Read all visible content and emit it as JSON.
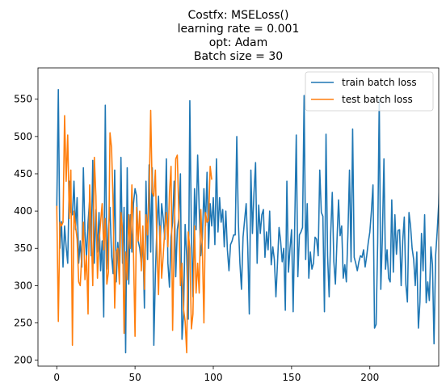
{
  "chart_data": {
    "type": "line",
    "title_lines": [
      "Costfx: MSELoss()",
      "learning rate = 0.001",
      "opt: Adam",
      "Batch size = 30"
    ],
    "xlabel": "",
    "ylabel": "",
    "xlim": [
      -12,
      244
    ],
    "ylim": [
      192,
      592
    ],
    "xticks": [
      0,
      50,
      100,
      150,
      200
    ],
    "yticks": [
      200,
      250,
      300,
      350,
      400,
      450,
      500,
      550
    ],
    "grid": false,
    "legend_position": "top-right",
    "series": [
      {
        "name": "train batch loss",
        "color": "#1f77b4",
        "values": [
          402,
          563,
          350,
          386,
          325,
          380,
          352,
          330,
          440,
          398,
          395,
          440,
          375,
          418,
          330,
          360,
          325,
          458,
          372,
          338,
          385,
          415,
          340,
          468,
          330,
          402,
          345,
          398,
          320,
          360,
          258,
          542,
          322,
          375,
          405,
          340,
          316,
          455,
          305,
          358,
          325,
          472,
          330,
          405,
          210,
          458,
          302,
          395,
          345,
          410,
          430,
          420,
          360,
          350,
          330,
          365,
          270,
          440,
          335,
          462,
          345,
          458,
          220,
          315,
          380,
          420,
          350,
          410,
          390,
          362,
          470,
          330,
          298,
          365,
          385,
          440,
          312,
          375,
          390,
          450,
          228,
          262,
          382,
          340,
          255,
          548,
          370,
          285,
          430,
          375,
          475,
          402,
          340,
          362,
          430,
          380,
          452,
          350,
          410,
          380,
          418,
          355,
          470,
          372,
          418,
          385,
          402,
          352,
          400,
          348,
          320,
          355,
          360,
          368,
          368,
          500,
          385,
          330,
          295,
          365,
          388,
          410,
          352,
          262,
          455,
          370,
          425,
          465,
          330,
          408,
          370,
          395,
          402,
          338,
          372,
          348,
          400,
          328,
          352,
          335,
          285,
          330,
          378,
          360,
          332,
          350,
          267,
          440,
          318,
          350,
          375,
          265,
          380,
          502,
          312,
          368,
          372,
          378,
          555,
          335,
          410,
          310,
          345,
          322,
          330,
          365,
          362,
          340,
          455,
          398,
          393,
          265,
          503,
          340,
          285,
          370,
          425,
          332,
          302,
          360,
          415,
          367,
          380,
          310,
          328,
          305,
          370,
          455,
          332,
          510,
          338,
          330,
          320,
          332,
          340,
          338,
          348,
          325,
          340,
          358,
          372,
          400,
          435,
          243,
          248,
          358,
          550,
          295,
          365,
          470,
          322,
          348,
          310,
          305,
          415,
          318,
          395,
          342,
          374,
          375,
          300,
          360,
          392,
          302,
          278,
          398,
          380,
          350,
          335,
          300,
          345,
          243,
          278,
          370,
          320,
          395,
          277,
          305,
          280,
          352,
          328,
          222,
          340,
          372,
          410,
          508
        ]
      },
      {
        "name": "test batch loss",
        "color": "#ff7f0e",
        "values": [
          407,
          252,
          385,
          380,
          385,
          528,
          440,
          502,
          390,
          455,
          220,
          400,
          380,
          362,
          305,
          300,
          342,
          385,
          308,
          340,
          262,
          435,
          375,
          300,
          472,
          420,
          310,
          358,
          385,
          410,
          348,
          390,
          302,
          318,
          505,
          485,
          410,
          270,
          345,
          350,
          302,
          398,
          375,
          236,
          345,
          308,
          395,
          350,
          435,
          345,
          232,
          405,
          360,
          400,
          320,
          380,
          295,
          395,
          368,
          418,
          535,
          425,
          420,
          455,
          350,
          288,
          380,
          310,
          340,
          375,
          398,
          352,
          425,
          460,
          240,
          358,
          470,
          475,
          395,
          300,
          330,
          268,
          252,
          210,
          372,
          350,
          242,
          262,
          380,
          290,
          330,
          290,
          402,
          350,
          250,
          398,
          385,
          388,
          460,
          442
        ]
      }
    ]
  }
}
